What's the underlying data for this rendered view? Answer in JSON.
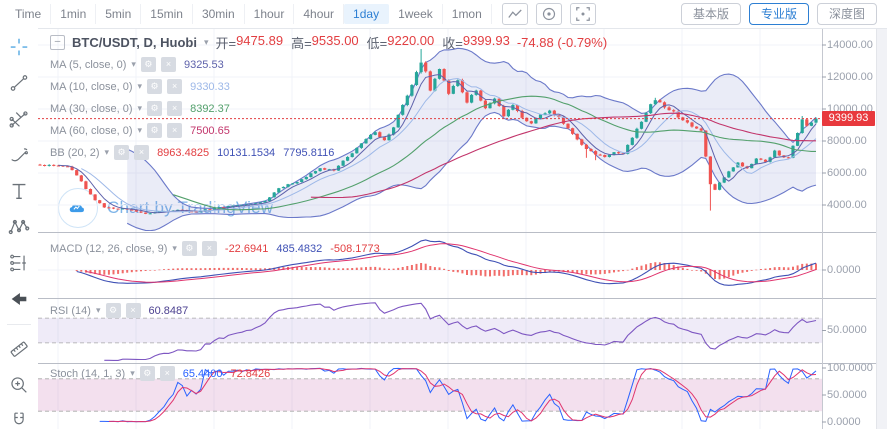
{
  "topbar": {
    "intervals": [
      {
        "label": "Time",
        "active": false
      },
      {
        "label": "1min",
        "active": false
      },
      {
        "label": "5min",
        "active": false
      },
      {
        "label": "15min",
        "active": false
      },
      {
        "label": "30min",
        "active": false
      },
      {
        "label": "1hour",
        "active": false
      },
      {
        "label": "4hour",
        "active": false
      },
      {
        "label": "1day",
        "active": true
      },
      {
        "label": "1week",
        "active": false
      },
      {
        "label": "1mon",
        "active": false
      }
    ],
    "icon_buttons": [
      "polyline-chart",
      "target",
      "screenshot"
    ],
    "right_buttons": [
      {
        "label": "基本版",
        "active": false
      },
      {
        "label": "专业版",
        "active": true
      },
      {
        "label": "深度图",
        "active": false
      }
    ]
  },
  "left_toolbar": {
    "tools": [
      "crosshair",
      "trend-line",
      "gann-fib",
      "brush",
      "text",
      "xabcd-pattern",
      "forecast",
      "arrow",
      "ruler",
      "zoom-in",
      "magnet"
    ],
    "divider_before": "ruler"
  },
  "chart_header": {
    "symbol": "BTC/USDT, D, Huobi",
    "ohlc": [
      {
        "label": "开=",
        "value": "9475.89"
      },
      {
        "label": "高=",
        "value": "9535.00"
      },
      {
        "label": "低=",
        "value": "9220.00"
      },
      {
        "label": "收=",
        "value": "9399.93"
      }
    ],
    "change": "-74.88 (-0.79%)"
  },
  "indicators": [
    {
      "id": "ma5",
      "pane": "main",
      "name": "MA (5, close, 0)",
      "values": [
        {
          "text": "9325.53",
          "color": "#5e62ab"
        }
      ]
    },
    {
      "id": "ma10",
      "pane": "main",
      "name": "MA (10, close, 0)",
      "values": [
        {
          "text": "9330.33",
          "color": "#9db8e8"
        }
      ]
    },
    {
      "id": "ma30",
      "pane": "main",
      "name": "MA (30, close, 0)",
      "values": [
        {
          "text": "8392.37",
          "color": "#53a06c"
        }
      ]
    },
    {
      "id": "ma60",
      "pane": "main",
      "name": "MA (60, close, 0)",
      "values": [
        {
          "text": "7500.65",
          "color": "#c2356b"
        }
      ]
    },
    {
      "id": "bb",
      "pane": "main",
      "name": "BB (20, 2)",
      "values": [
        {
          "text": "8963.4825",
          "color": "#e23e41"
        },
        {
          "text": "10131.1534",
          "color": "#3f51b5"
        },
        {
          "text": "7795.8116",
          "color": "#3f51b5"
        }
      ]
    },
    {
      "id": "macd",
      "pane": "macd",
      "name": "MACD (12, 26, close, 9)",
      "values": [
        {
          "text": "-22.6941",
          "color": "#e23e41"
        },
        {
          "text": "485.4832",
          "color": "#3f51b5"
        },
        {
          "text": "-508.1773",
          "color": "#e23e41"
        }
      ]
    },
    {
      "id": "rsi",
      "pane": "rsi",
      "name": "RSI (14)",
      "values": [
        {
          "text": "60.8487",
          "color": "#4a3f8f"
        }
      ]
    },
    {
      "id": "stoch",
      "pane": "stoch",
      "name": "Stoch (14, 1, 3)",
      "values": [
        {
          "text": "65.4400",
          "color": "#2962ff"
        },
        {
          "text": "72.8426",
          "color": "#e23e41"
        }
      ]
    }
  ],
  "watermark": {
    "text": "Chart by TradingView"
  },
  "price_axis": {
    "main_ticks": [
      14000,
      12000,
      10000,
      8000,
      6000,
      4000
    ],
    "last_price": "9399.93",
    "macd_ticks": [
      0
    ],
    "rsi_ticks": [
      50
    ],
    "stoch_ticks": [
      100,
      50,
      0
    ]
  },
  "colors": {
    "up": "#26a69a",
    "down": "#ef5350",
    "bb_line": "#6b79c9",
    "bb_fill": "rgba(107,121,201,0.14)",
    "ma5": "#5e62ab",
    "ma10": "#9db8e8",
    "ma30": "#53a06c",
    "ma60": "#c2356b",
    "macd_line": "#3f51b5",
    "macd_signal": "#e0356e",
    "macd_hist": "#ef5350",
    "rsi_line": "#7e57c2",
    "rsi_band": "rgba(126,87,194,0.12)",
    "stoch_k": "#2962ff",
    "stoch_d": "#e0356e",
    "stoch_band": "rgba(186,85,160,0.18)",
    "last_price": "#e23e41",
    "accent": "#2d7fd3",
    "grid": "#f1f3f8",
    "divider": "#b9bdc6",
    "axis_text": "#9ba1ad"
  },
  "chart_data": {
    "type": "candlestick",
    "symbol": "BTC/USDT",
    "interval": "D",
    "exchange": "Huobi",
    "ohlc": {
      "open": 9475.89,
      "high": 9535.0,
      "low": 9220.0,
      "close": 9399.93,
      "change": -74.88,
      "change_pct": -0.79
    },
    "y_axis": {
      "min": 4000,
      "max": 14000,
      "tick_step": 2000
    },
    "candle_count": 170,
    "close_waypoints": [
      [
        0,
        6500
      ],
      [
        6,
        6400
      ],
      [
        8,
        5850
      ],
      [
        10,
        5000
      ],
      [
        12,
        4300
      ],
      [
        14,
        3850
      ],
      [
        20,
        3700
      ],
      [
        23,
        3450
      ],
      [
        26,
        3600
      ],
      [
        30,
        3700
      ],
      [
        34,
        3580
      ],
      [
        38,
        3800
      ],
      [
        42,
        3950
      ],
      [
        46,
        4050
      ],
      [
        49,
        4250
      ],
      [
        52,
        5050
      ],
      [
        55,
        5350
      ],
      [
        58,
        5750
      ],
      [
        61,
        6300
      ],
      [
        64,
        6150
      ],
      [
        67,
        7000
      ],
      [
        70,
        7850
      ],
      [
        73,
        8550
      ],
      [
        75,
        8050
      ],
      [
        77,
        8850
      ],
      [
        79,
        10250
      ],
      [
        81,
        11500
      ],
      [
        83,
        12900
      ],
      [
        84,
        12350
      ],
      [
        85,
        11150
      ],
      [
        87,
        12500
      ],
      [
        89,
        10950
      ],
      [
        91,
        11800
      ],
      [
        93,
        10400
      ],
      [
        95,
        11150
      ],
      [
        97,
        10050
      ],
      [
        99,
        10650
      ],
      [
        101,
        9550
      ],
      [
        103,
        10250
      ],
      [
        105,
        9450
      ],
      [
        107,
        9100
      ],
      [
        109,
        9650
      ],
      [
        111,
        9900
      ],
      [
        113,
        9500
      ],
      [
        115,
        8800
      ],
      [
        117,
        8100
      ],
      [
        119,
        7500
      ],
      [
        121,
        7150
      ],
      [
        123,
        7000
      ],
      [
        125,
        7300
      ],
      [
        127,
        7200
      ],
      [
        129,
        8200
      ],
      [
        131,
        9200
      ],
      [
        133,
        10300
      ],
      [
        134,
        10550
      ],
      [
        136,
        10100
      ],
      [
        138,
        9850
      ],
      [
        140,
        9300
      ],
      [
        142,
        8900
      ],
      [
        144,
        8650
      ],
      [
        146,
        5300
      ],
      [
        147,
        4950
      ],
      [
        148,
        5400
      ],
      [
        150,
        6100
      ],
      [
        152,
        6650
      ],
      [
        154,
        6300
      ],
      [
        156,
        6900
      ],
      [
        158,
        6700
      ],
      [
        160,
        7400
      ],
      [
        161,
        7100
      ],
      [
        163,
        6950
      ],
      [
        164,
        7700
      ],
      [
        165,
        8500
      ],
      [
        166,
        9350
      ],
      [
        167,
        8950
      ],
      [
        168,
        9150
      ],
      [
        169,
        9399.93
      ]
    ],
    "wick_overrides": {
      "83": {
        "high": 13750
      },
      "119": {
        "low": 6950
      },
      "121": {
        "low": 6800
      },
      "134": {
        "high": 10700
      },
      "146": {
        "low": 3650
      },
      "166": {
        "high": 9560
      }
    },
    "overlays": [
      "MA5",
      "MA10",
      "MA30",
      "MA60",
      "BB(20,2)"
    ],
    "panes": [
      "MACD(12,26,close,9)",
      "RSI(14)",
      "Stoch(14,1,3)"
    ]
  }
}
